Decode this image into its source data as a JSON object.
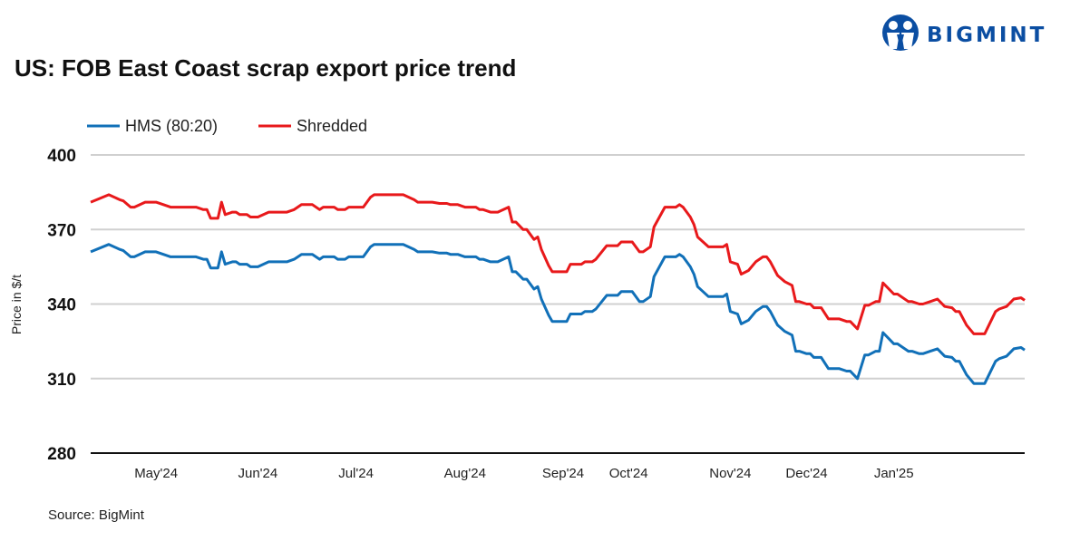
{
  "logo": {
    "text": "BIGMINT",
    "color": "#0b4ea2"
  },
  "source": "Source: BigMint",
  "chart_data": {
    "type": "line",
    "title": "US: FOB East Coast scrap export price trend",
    "xlabel": "",
    "ylabel": "Price in $/t",
    "ylim": [
      280,
      400
    ],
    "yticks": [
      280,
      310,
      340,
      370,
      400
    ],
    "grid": "horizontal",
    "legend_position": "top-left",
    "xlim": [
      0,
      257
    ],
    "xticks": [
      {
        "label": "May'24",
        "x": 18
      },
      {
        "label": "Jun'24",
        "x": 46
      },
      {
        "label": "Jul'24",
        "x": 73
      },
      {
        "label": "Aug'24",
        "x": 103
      },
      {
        "label": "Sep'24",
        "x": 130
      },
      {
        "label": "Oct'24",
        "x": 148
      },
      {
        "label": "Nov'24",
        "x": 176
      },
      {
        "label": "Dec'24",
        "x": 197
      },
      {
        "label": "Jan'25",
        "x": 221
      }
    ],
    "x": [
      0,
      5,
      8,
      9,
      11,
      12,
      15,
      18,
      20,
      22,
      29,
      31,
      32,
      33,
      35,
      36,
      37,
      39,
      40,
      41,
      43,
      44,
      46,
      49,
      54,
      56,
      58,
      61,
      63,
      64,
      67,
      68,
      70,
      71,
      75,
      77,
      78,
      86,
      89,
      90,
      94,
      96,
      98,
      99,
      101,
      103,
      106,
      107,
      108,
      110,
      112,
      115,
      116,
      117,
      119,
      120,
      122,
      123,
      124,
      126,
      127,
      131,
      132,
      135,
      136,
      138,
      139,
      142,
      145,
      146,
      149,
      151,
      152,
      154,
      155,
      158,
      161,
      162,
      163,
      165,
      166,
      167,
      170,
      174,
      175,
      176,
      178,
      179,
      181,
      183,
      185,
      186,
      187,
      189,
      191,
      193,
      194,
      195,
      197,
      198,
      199,
      201,
      203,
      206,
      208,
      209,
      211,
      213,
      214,
      216,
      217,
      218,
      221,
      222,
      225,
      226,
      228,
      229,
      231,
      233,
      235,
      237,
      238,
      239,
      241,
      243,
      246,
      249,
      250,
      252,
      254,
      256,
      257
    ],
    "series": [
      {
        "name": "HMS (80:20)",
        "color": "#1170b8",
        "values": [
          361,
          364,
          362,
          361.5,
          359,
          359,
          361,
          361,
          360,
          359,
          359,
          358,
          358,
          354.5,
          354.5,
          361,
          356,
          357,
          357,
          356,
          356,
          355,
          355,
          357,
          357,
          358,
          360,
          360,
          358,
          359,
          359,
          358,
          358,
          359,
          359,
          363,
          364,
          364,
          362,
          361,
          361,
          360.5,
          360.5,
          360,
          360,
          359,
          359,
          358,
          358,
          357,
          357,
          359,
          353,
          353,
          350,
          350,
          346,
          347,
          342,
          335.5,
          333,
          333,
          336,
          336,
          337,
          337,
          338,
          343.5,
          343.5,
          345,
          345,
          341,
          341,
          343,
          351,
          359,
          359,
          360,
          359,
          355,
          352,
          347,
          343,
          343,
          344,
          337,
          336,
          332,
          333.5,
          337,
          339,
          339,
          337,
          331.5,
          329,
          327.5,
          321,
          321,
          320,
          320,
          318.5,
          318.5,
          314,
          314,
          313,
          313,
          310,
          319.5,
          319.5,
          321,
          321,
          328.5,
          324,
          324,
          321,
          321,
          320,
          320,
          321,
          322,
          319,
          318.5,
          317,
          317,
          311.5,
          308,
          308,
          317,
          318,
          319,
          322,
          322.5,
          321.5
        ]
      },
      {
        "name": "Shredded",
        "color": "#e8191b",
        "values": [
          381,
          384,
          382,
          381.5,
          379,
          379,
          381,
          381,
          380,
          379,
          379,
          378,
          378,
          374.5,
          374.5,
          381,
          376,
          377,
          377,
          376,
          376,
          375,
          375,
          377,
          377,
          378,
          380,
          380,
          378,
          379,
          379,
          378,
          378,
          379,
          379,
          383,
          384,
          384,
          382,
          381,
          381,
          380.5,
          380.5,
          380,
          380,
          379,
          379,
          378,
          378,
          377,
          377,
          379,
          373,
          373,
          370,
          370,
          366,
          367,
          362,
          355.5,
          353,
          353,
          356,
          356,
          357,
          357,
          358,
          363.5,
          363.5,
          365,
          365,
          361,
          361,
          363,
          371,
          379,
          379,
          380,
          379,
          375,
          372,
          367,
          363,
          363,
          364,
          357,
          356,
          352,
          353.5,
          357,
          359,
          359,
          357,
          351.5,
          349,
          347.5,
          341,
          341,
          340,
          340,
          338.5,
          338.5,
          334,
          334,
          333,
          333,
          330,
          339.5,
          339.5,
          341,
          341,
          348.5,
          344,
          344,
          341,
          341,
          340,
          340,
          341,
          342,
          339,
          338.5,
          337,
          337,
          331.5,
          328,
          328,
          337,
          338,
          339,
          342,
          342.5,
          341.5
        ]
      }
    ]
  }
}
